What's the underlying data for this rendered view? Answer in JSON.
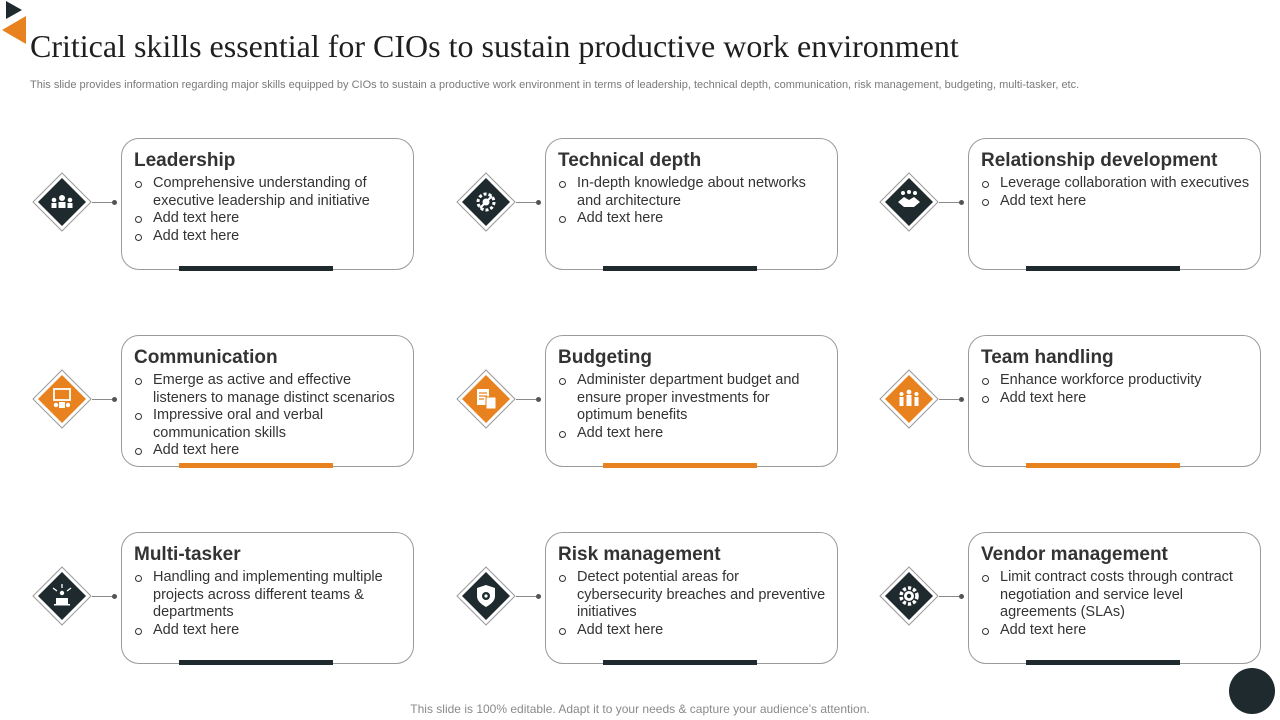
{
  "title": "Critical skills essential for CIOs to sustain productive work environment",
  "subtitle": "This slide provides information regarding major skills equipped by CIOs to sustain a productive work environment in terms of leadership, technical depth, communication, risk management, budgeting, multi-tasker, etc.",
  "footer": "This slide is 100% editable. Adapt it to your needs & capture your audience’s attention.",
  "colors": {
    "dark": "#1f2a2e",
    "accent": "#e8821e"
  },
  "cards": [
    {
      "title": "Leadership",
      "icon": "team-leader-icon",
      "accent": "dark",
      "bullets": [
        "Comprehensive understanding of executive leadership and initiative",
        "Add text here",
        "Add text here"
      ]
    },
    {
      "title": "Technical depth",
      "icon": "gear-tools-icon",
      "accent": "dark",
      "bullets": [
        "In-depth knowledge about networks and architecture",
        "Add text here"
      ]
    },
    {
      "title": "Relationship development",
      "icon": "handshake-icon",
      "accent": "dark",
      "bullets": [
        "Leverage collaboration with executives",
        "Add text here"
      ]
    },
    {
      "title": "Communication",
      "icon": "presentation-icon",
      "accent": "orange",
      "bullets": [
        "Emerge as active and effective listeners to manage distinct scenarios",
        "Impressive oral and verbal communication skills",
        "Add text here"
      ]
    },
    {
      "title": "Budgeting",
      "icon": "calculator-document-icon",
      "accent": "orange",
      "bullets": [
        "Administer department budget and ensure proper investments for optimum benefits",
        "Add text here"
      ]
    },
    {
      "title": "Team handling",
      "icon": "team-group-icon",
      "accent": "orange",
      "bullets": [
        "Enhance workforce productivity",
        "Add text here"
      ]
    },
    {
      "title": "Multi-tasker",
      "icon": "multitask-laptop-icon",
      "accent": "dark",
      "bullets": [
        "Handling and implementing multiple projects across different teams & departments",
        "Add text here"
      ]
    },
    {
      "title": "Risk management",
      "icon": "shield-gear-icon",
      "accent": "dark",
      "bullets": [
        "Detect potential areas for cybersecurity breaches and preventive initiatives",
        "Add text here"
      ]
    },
    {
      "title": "Vendor management",
      "icon": "settings-gear-icon",
      "accent": "dark",
      "bullets": [
        "Limit contract costs through contract negotiation and service level agreements (SLAs)",
        "Add text here"
      ]
    }
  ]
}
